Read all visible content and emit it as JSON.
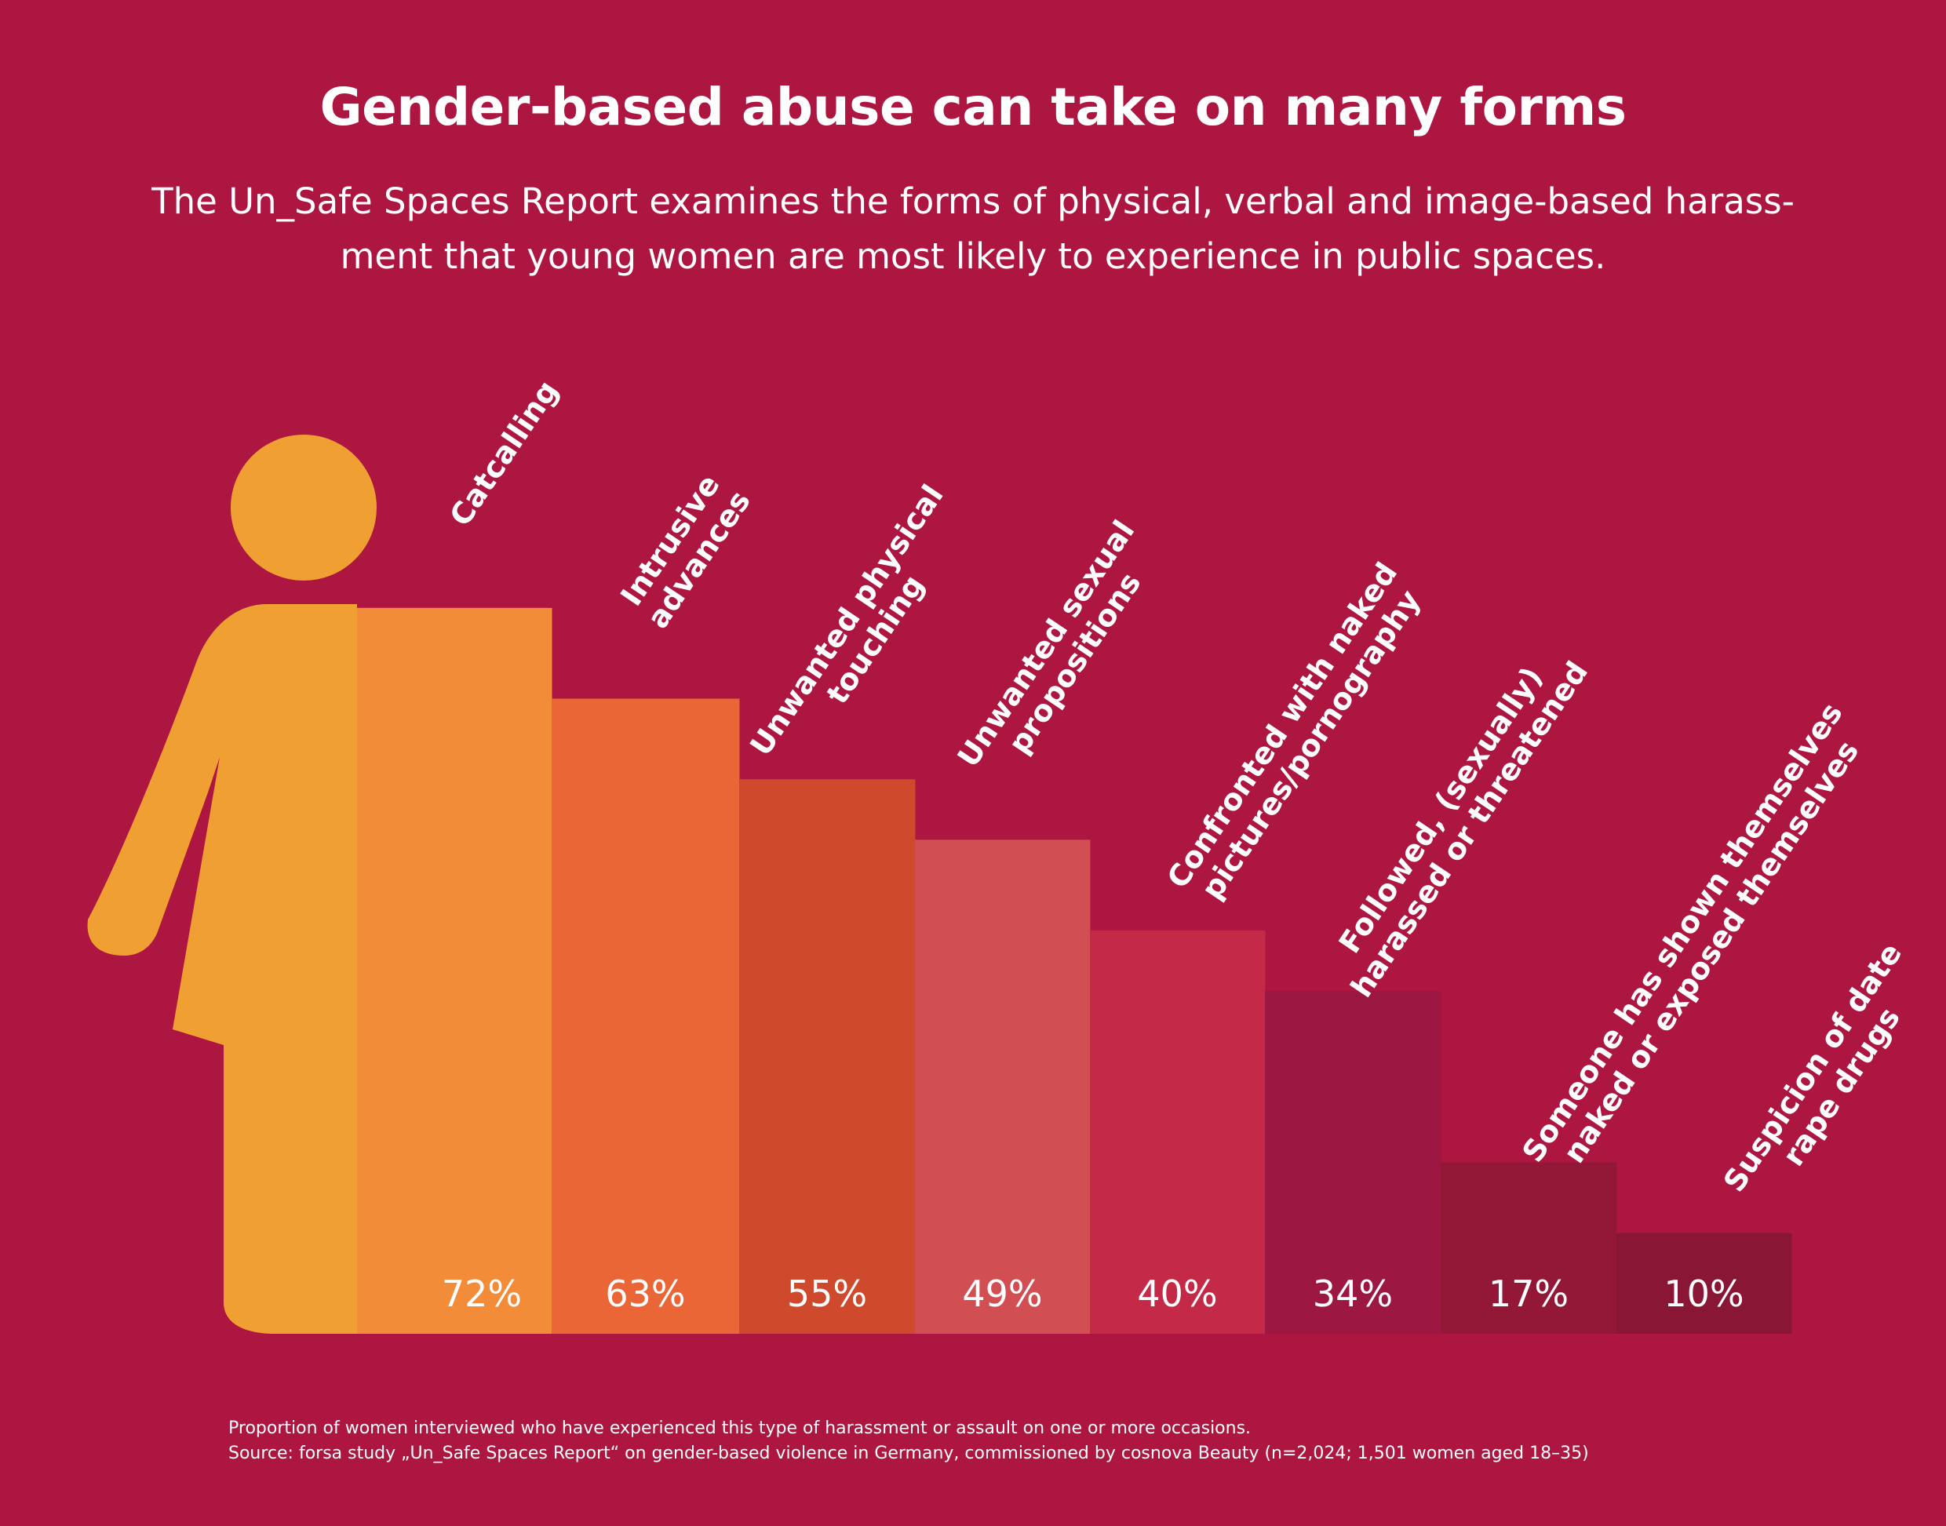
{
  "header": {
    "title": "Gender-based abuse can take on many forms",
    "subtitle": "The Un_Safe Spaces Report examines the forms of physical, verbal and image-based harass-ment that young women are most likely to experience in public spaces."
  },
  "chart_data": {
    "type": "bar",
    "title": "Gender-based abuse can take on many forms",
    "xlabel": "",
    "ylabel": "",
    "ylim": [
      0,
      100
    ],
    "categories": [
      "Catcalling",
      "Intrusive advances",
      "Unwanted physical touching",
      "Unwanted sexual propositions",
      "Confronted with naked pictures/pornography",
      "Followed, (sexually) harassed or threatened",
      "Someone has shown themselves naked or exposed themselves",
      "Suspicion of date rape drugs"
    ],
    "label_lines": [
      [
        "Catcalling"
      ],
      [
        "Intrusive",
        "advances"
      ],
      [
        "Unwanted physical",
        "touching"
      ],
      [
        "Unwanted sexual",
        "propositions"
      ],
      [
        "Confronted with naked",
        "pictures/pornography"
      ],
      [
        "Followed, (sexually)",
        "harassed or threatened"
      ],
      [
        "Someone has shown themselves",
        "naked or exposed themselves"
      ],
      [
        "Suspicion of date",
        "rape drugs"
      ]
    ],
    "values": [
      72,
      63,
      55,
      49,
      40,
      34,
      17,
      10
    ],
    "value_labels": [
      "72%",
      "63%",
      "55%",
      "49%",
      "40%",
      "34%",
      "17%",
      "10%"
    ],
    "colors": [
      "#f28c38",
      "#ea6636",
      "#cf4a2c",
      "#d14f52",
      "#c42a47",
      "#9c1742",
      "#931838",
      "#8a1636"
    ]
  },
  "figure": {
    "icon": "woman-figure-icon",
    "color": "#f0a033"
  },
  "footnote": {
    "line1": "Proportion of women interviewed who have experienced this type of harassment or assault on one or more occasions.",
    "line2": "Source: forsa study „Un_Safe Spaces Report“ on gender-based violence in Germany, commissioned by cosnova Beauty (n=2,024; 1,501 women aged 18–35)"
  }
}
